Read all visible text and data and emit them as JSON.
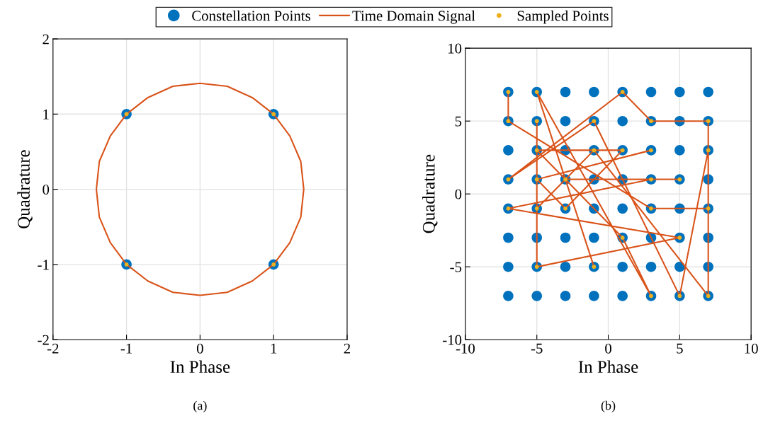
{
  "chart_data": [
    {
      "type": "scatter",
      "xlabel": "In Phase",
      "ylabel": "Quadrature",
      "annotations": [
        "(a)"
      ],
      "xlim": [
        -2,
        2
      ],
      "ylim": [
        -2,
        2
      ],
      "xticks": [
        -2,
        -1,
        0,
        1,
        2
      ],
      "yticks": [
        -2,
        -1,
        0,
        1,
        2
      ],
      "grid": true,
      "legend": "top",
      "series": [
        {
          "name": "Constellation Points",
          "marker": "circle",
          "color": "#0072bd",
          "x": [
            -1,
            1,
            -1,
            1
          ],
          "values": [
            1,
            1,
            -1,
            -1
          ]
        },
        {
          "name": "Time Domain Signal",
          "type": "line",
          "marker": "none",
          "line_style": "solid",
          "color": "#d95319",
          "x": [
            1.41,
            1.37,
            1.22,
            1,
            0.71,
            0.37,
            0,
            -0.37,
            -0.71,
            -1,
            -1.22,
            -1.37,
            -1.41,
            -1.37,
            -1.22,
            -1,
            -0.71,
            -0.37,
            0,
            0.37,
            0.71,
            1,
            1.22,
            1.37,
            1.41,
            1.37
          ],
          "values": [
            0,
            0.37,
            0.71,
            1,
            1.22,
            1.37,
            1.41,
            1.37,
            1.22,
            1,
            0.71,
            0.37,
            0,
            -0.37,
            -0.71,
            -1,
            -1.22,
            -1.37,
            -1.41,
            -1.37,
            -1.22,
            -1,
            -0.71,
            -0.37,
            0,
            0.37
          ]
        },
        {
          "name": "Sampled Points",
          "marker": "circle",
          "color": "#edb120",
          "x": [
            1,
            -1,
            -1,
            1
          ],
          "values": [
            1,
            1,
            -1,
            -1
          ]
        }
      ]
    },
    {
      "type": "scatter",
      "xlabel": "In Phase",
      "ylabel": "Quadrature",
      "annotations": [
        "(b)"
      ],
      "xlim": [
        -10,
        10
      ],
      "ylim": [
        -10,
        10
      ],
      "xticks": [
        -10,
        -5,
        0,
        5,
        10
      ],
      "yticks": [
        -10,
        -5,
        0,
        5,
        10
      ],
      "grid": true,
      "series": [
        {
          "marker": "circle",
          "color": "#0072bd",
          "x": [
            -7,
            -5,
            -3,
            -1,
            1,
            3,
            5,
            7,
            -7,
            -5,
            -3,
            -1,
            1,
            3,
            5,
            7,
            -7,
            -5,
            -3,
            -1,
            1,
            3,
            5,
            7,
            -7,
            -5,
            -3,
            -1,
            1,
            3,
            5,
            7,
            -7,
            -5,
            -3,
            -1,
            1,
            3,
            5,
            7,
            -7,
            -5,
            -3,
            -1,
            1,
            3,
            5,
            7,
            -7,
            -5,
            -3,
            -1,
            1,
            3,
            5,
            7,
            -7,
            -5,
            -3,
            -1,
            1,
            3,
            5,
            7
          ],
          "values": [
            7,
            7,
            7,
            7,
            7,
            7,
            7,
            7,
            5,
            5,
            5,
            5,
            5,
            5,
            5,
            5,
            3,
            3,
            3,
            3,
            3,
            3,
            3,
            3,
            1,
            1,
            1,
            1,
            1,
            1,
            1,
            1,
            -1,
            -1,
            -1,
            -1,
            -1,
            -1,
            -1,
            -1,
            -3,
            -3,
            -3,
            -3,
            -3,
            -3,
            -3,
            -3,
            -5,
            -5,
            -5,
            -5,
            -5,
            -5,
            -5,
            -5,
            -7,
            -7,
            -7,
            -7,
            -7,
            -7,
            -7,
            -7
          ]
        },
        {
          "type": "line",
          "marker": "none",
          "line_style": "solid",
          "color": "#d95319",
          "x": [
            -7,
            -7,
            3,
            7,
            7,
            3,
            1,
            -7,
            -1,
            5,
            7,
            7,
            -1,
            -5,
            -5,
            -5,
            5,
            -7,
            3,
            5,
            -3,
            -1,
            -5,
            3,
            1,
            -5,
            1,
            -3,
            -5,
            3
          ],
          "values": [
            7,
            5,
            -1,
            -1,
            5,
            5,
            7,
            1,
            5,
            -7,
            3,
            -7,
            3,
            -1,
            5,
            -5,
            -3,
            -1,
            1,
            1,
            1,
            -5,
            7,
            -7,
            -3,
            3,
            3,
            -1,
            1,
            3
          ]
        },
        {
          "marker": "circle",
          "color": "#edb120",
          "x": [
            -7,
            -7,
            3,
            7,
            7,
            3,
            1,
            -7,
            -1,
            5,
            7,
            7,
            -1,
            -5,
            -5,
            -5,
            5,
            -7,
            3,
            5,
            -3,
            -1,
            -5,
            3,
            1,
            -5,
            1,
            -3,
            -5,
            3
          ],
          "values": [
            7,
            5,
            -1,
            -1,
            5,
            5,
            7,
            1,
            5,
            -7,
            3,
            -7,
            3,
            -1,
            5,
            -5,
            -3,
            -1,
            1,
            1,
            1,
            -5,
            7,
            -7,
            -3,
            3,
            3,
            -1,
            1,
            3
          ]
        }
      ]
    }
  ]
}
